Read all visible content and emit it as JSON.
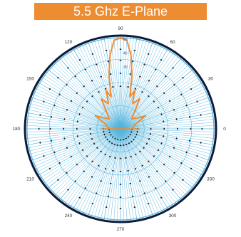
{
  "title": "5.5 Ghz E-Plane",
  "colors": {
    "banner": "#ee8c32",
    "banner_text": "#ffffff",
    "grid": "#55b4dc",
    "outer_ring": "#0d1b3a",
    "pattern": "#ee8c32",
    "dots": "#1d1d2e"
  },
  "chart_data": {
    "type": "polar-line",
    "title": "5.5 Ghz E-Plane",
    "angle_labels": [
      "0",
      "30",
      "60",
      "90",
      "120",
      "150",
      "180",
      "210",
      "240",
      "270",
      "300",
      "330"
    ],
    "ring_labels": [
      "50",
      "40",
      "30"
    ],
    "series": [
      {
        "theta": [
          0,
          10,
          20,
          28,
          35,
          42,
          50,
          58,
          65,
          70,
          74,
          78,
          82,
          86,
          90,
          94,
          98,
          102,
          106,
          110,
          115,
          122,
          130,
          138,
          145,
          152,
          160,
          170,
          180
        ],
        "r": [
          0.12,
          0.14,
          0.18,
          0.3,
          0.2,
          0.16,
          0.22,
          0.38,
          0.3,
          0.44,
          0.36,
          0.58,
          0.8,
          0.96,
          0.98,
          0.96,
          0.8,
          0.58,
          0.36,
          0.44,
          0.3,
          0.38,
          0.22,
          0.16,
          0.2,
          0.3,
          0.18,
          0.14,
          0.12
        ]
      }
    ],
    "grid": true
  }
}
